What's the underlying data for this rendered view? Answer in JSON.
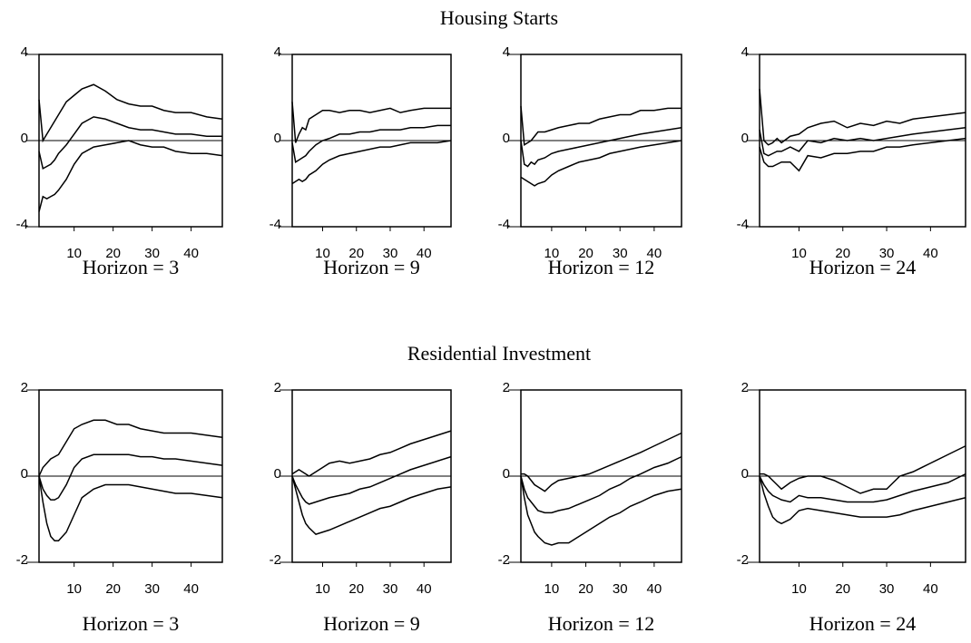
{
  "titles": [
    "Housing Starts",
    "Residential Investment"
  ],
  "chart_data": [
    {
      "type": "line",
      "xlabel": "Horizon = 3",
      "x": [
        1,
        2,
        3,
        4,
        5,
        6,
        8,
        10,
        12,
        15,
        18,
        21,
        24,
        27,
        30,
        33,
        36,
        40,
        44,
        48
      ],
      "xlim": [
        1,
        48
      ],
      "xticks": [
        10,
        20,
        30,
        40
      ],
      "ylim": [
        -4,
        4
      ],
      "yticks": [
        -4,
        0,
        4
      ],
      "series": [
        {
          "color": "#000000",
          "values": [
            1.9,
            0.0,
            0.3,
            0.6,
            0.9,
            1.2,
            1.8,
            2.1,
            2.4,
            2.6,
            2.3,
            1.9,
            1.7,
            1.6,
            1.6,
            1.4,
            1.3,
            1.3,
            1.1,
            1.0
          ]
        },
        {
          "color": "#000000",
          "values": [
            -0.5,
            -1.3,
            -1.2,
            -1.1,
            -0.9,
            -0.6,
            -0.2,
            0.3,
            0.8,
            1.1,
            1.0,
            0.8,
            0.6,
            0.5,
            0.5,
            0.4,
            0.3,
            0.3,
            0.2,
            0.2
          ]
        },
        {
          "color": "#000000",
          "values": [
            -3.3,
            -2.6,
            -2.7,
            -2.6,
            -2.5,
            -2.3,
            -1.8,
            -1.1,
            -0.6,
            -0.3,
            -0.2,
            -0.1,
            0.0,
            -0.2,
            -0.3,
            -0.3,
            -0.5,
            -0.6,
            -0.6,
            -0.7
          ]
        }
      ]
    },
    {
      "type": "line",
      "xlabel": "Horizon = 9",
      "x": [
        1,
        2,
        3,
        4,
        5,
        6,
        8,
        10,
        12,
        15,
        18,
        21,
        24,
        27,
        30,
        33,
        36,
        40,
        44,
        48
      ],
      "xlim": [
        1,
        48
      ],
      "xticks": [
        10,
        20,
        30,
        40
      ],
      "ylim": [
        -4,
        4
      ],
      "yticks": [
        -4,
        0,
        4
      ],
      "series": [
        {
          "color": "#000000",
          "values": [
            1.8,
            -0.1,
            0.3,
            0.6,
            0.5,
            1.0,
            1.2,
            1.4,
            1.4,
            1.3,
            1.4,
            1.4,
            1.3,
            1.4,
            1.5,
            1.3,
            1.4,
            1.5,
            1.5,
            1.5
          ]
        },
        {
          "color": "#000000",
          "values": [
            -0.1,
            -1.0,
            -0.9,
            -0.8,
            -0.7,
            -0.5,
            -0.2,
            0.0,
            0.1,
            0.3,
            0.3,
            0.4,
            0.4,
            0.5,
            0.5,
            0.5,
            0.6,
            0.6,
            0.7,
            0.7
          ]
        },
        {
          "color": "#000000",
          "values": [
            -2.0,
            -1.9,
            -1.8,
            -1.9,
            -1.8,
            -1.6,
            -1.4,
            -1.1,
            -0.9,
            -0.7,
            -0.6,
            -0.5,
            -0.4,
            -0.3,
            -0.3,
            -0.2,
            -0.1,
            -0.1,
            -0.1,
            0.0
          ]
        }
      ]
    },
    {
      "type": "line",
      "xlabel": "Horizon = 12",
      "x": [
        1,
        2,
        3,
        4,
        5,
        6,
        8,
        10,
        12,
        15,
        18,
        21,
        24,
        27,
        30,
        33,
        36,
        40,
        44,
        48
      ],
      "xlim": [
        1,
        48
      ],
      "xticks": [
        10,
        20,
        30,
        40
      ],
      "ylim": [
        -4,
        4
      ],
      "yticks": [
        -4,
        0,
        4
      ],
      "series": [
        {
          "color": "#000000",
          "values": [
            1.6,
            -0.2,
            -0.1,
            0.0,
            0.2,
            0.4,
            0.4,
            0.5,
            0.6,
            0.7,
            0.8,
            0.8,
            1.0,
            1.1,
            1.2,
            1.2,
            1.4,
            1.4,
            1.5,
            1.5
          ]
        },
        {
          "color": "#000000",
          "values": [
            0.0,
            -1.1,
            -1.2,
            -1.0,
            -1.1,
            -0.9,
            -0.8,
            -0.6,
            -0.5,
            -0.4,
            -0.3,
            -0.2,
            -0.1,
            0.0,
            0.1,
            0.2,
            0.3,
            0.4,
            0.5,
            0.6
          ]
        },
        {
          "color": "#000000",
          "values": [
            -1.7,
            -1.8,
            -1.9,
            -2.0,
            -2.1,
            -2.0,
            -1.9,
            -1.6,
            -1.4,
            -1.2,
            -1.0,
            -0.9,
            -0.8,
            -0.6,
            -0.5,
            -0.4,
            -0.3,
            -0.2,
            -0.1,
            0.0
          ]
        }
      ]
    },
    {
      "type": "line",
      "xlabel": "Horizon = 24",
      "x": [
        1,
        2,
        3,
        4,
        5,
        6,
        8,
        10,
        12,
        15,
        18,
        21,
        24,
        27,
        30,
        33,
        36,
        40,
        44,
        48
      ],
      "xlim": [
        1,
        48
      ],
      "xticks": [
        10,
        20,
        30,
        40
      ],
      "ylim": [
        -4,
        4
      ],
      "yticks": [
        -4,
        0,
        4
      ],
      "series": [
        {
          "color": "#000000",
          "values": [
            2.4,
            0.0,
            -0.2,
            -0.1,
            0.1,
            -0.1,
            0.2,
            0.3,
            0.6,
            0.8,
            0.9,
            0.6,
            0.8,
            0.7,
            0.9,
            0.8,
            1.0,
            1.1,
            1.2,
            1.3
          ]
        },
        {
          "color": "#000000",
          "values": [
            0.5,
            -0.6,
            -0.7,
            -0.6,
            -0.5,
            -0.5,
            -0.3,
            -0.5,
            0.0,
            -0.1,
            0.1,
            0.0,
            0.1,
            0.0,
            0.1,
            0.2,
            0.3,
            0.4,
            0.5,
            0.6
          ]
        },
        {
          "color": "#000000",
          "values": [
            -0.3,
            -1.0,
            -1.2,
            -1.2,
            -1.1,
            -1.0,
            -1.0,
            -1.4,
            -0.7,
            -0.8,
            -0.6,
            -0.6,
            -0.5,
            -0.5,
            -0.3,
            -0.3,
            -0.2,
            -0.1,
            0.0,
            0.1
          ]
        }
      ]
    },
    {
      "type": "line",
      "xlabel": "Horizon = 3",
      "x": [
        1,
        2,
        3,
        4,
        5,
        6,
        8,
        10,
        12,
        15,
        18,
        21,
        24,
        27,
        30,
        33,
        36,
        40,
        44,
        48
      ],
      "xlim": [
        1,
        48
      ],
      "xticks": [
        10,
        20,
        30,
        40
      ],
      "ylim": [
        -2,
        2
      ],
      "yticks": [
        -2,
        0,
        2
      ],
      "series": [
        {
          "color": "#000000",
          "values": [
            0.0,
            0.2,
            0.3,
            0.4,
            0.45,
            0.5,
            0.8,
            1.1,
            1.2,
            1.3,
            1.3,
            1.2,
            1.2,
            1.1,
            1.05,
            1.0,
            1.0,
            1.0,
            0.95,
            0.9
          ]
        },
        {
          "color": "#000000",
          "values": [
            0.0,
            -0.3,
            -0.45,
            -0.55,
            -0.55,
            -0.5,
            -0.2,
            0.2,
            0.4,
            0.5,
            0.5,
            0.5,
            0.5,
            0.45,
            0.45,
            0.4,
            0.4,
            0.35,
            0.3,
            0.25
          ]
        },
        {
          "color": "#000000",
          "values": [
            0.0,
            -0.6,
            -1.1,
            -1.4,
            -1.5,
            -1.5,
            -1.3,
            -0.9,
            -0.5,
            -0.3,
            -0.2,
            -0.2,
            -0.2,
            -0.25,
            -0.3,
            -0.35,
            -0.4,
            -0.4,
            -0.45,
            -0.5
          ]
        }
      ]
    },
    {
      "type": "line",
      "xlabel": "Horizon = 9",
      "x": [
        1,
        2,
        3,
        4,
        5,
        6,
        8,
        10,
        12,
        15,
        18,
        21,
        24,
        27,
        30,
        33,
        36,
        40,
        44,
        48
      ],
      "xlim": [
        1,
        48
      ],
      "xticks": [
        10,
        20,
        30,
        40
      ],
      "ylim": [
        -2,
        2
      ],
      "yticks": [
        -2,
        0,
        2
      ],
      "series": [
        {
          "color": "#000000",
          "values": [
            0.05,
            0.1,
            0.15,
            0.1,
            0.05,
            0.0,
            0.1,
            0.2,
            0.3,
            0.35,
            0.3,
            0.35,
            0.4,
            0.5,
            0.55,
            0.65,
            0.75,
            0.85,
            0.95,
            1.05
          ]
        },
        {
          "color": "#000000",
          "values": [
            0.0,
            -0.2,
            -0.35,
            -0.5,
            -0.6,
            -0.65,
            -0.6,
            -0.55,
            -0.5,
            -0.45,
            -0.4,
            -0.3,
            -0.25,
            -0.15,
            -0.05,
            0.05,
            0.15,
            0.25,
            0.35,
            0.45
          ]
        },
        {
          "color": "#000000",
          "values": [
            0.0,
            -0.3,
            -0.6,
            -0.9,
            -1.1,
            -1.2,
            -1.35,
            -1.3,
            -1.25,
            -1.15,
            -1.05,
            -0.95,
            -0.85,
            -0.75,
            -0.7,
            -0.6,
            -0.5,
            -0.4,
            -0.3,
            -0.25
          ]
        }
      ]
    },
    {
      "type": "line",
      "xlabel": "Horizon = 12",
      "x": [
        1,
        2,
        3,
        4,
        5,
        6,
        8,
        10,
        12,
        15,
        18,
        21,
        24,
        27,
        30,
        33,
        36,
        40,
        44,
        48
      ],
      "xlim": [
        1,
        48
      ],
      "xticks": [
        10,
        20,
        30,
        40
      ],
      "ylim": [
        -2,
        2
      ],
      "yticks": [
        -2,
        0,
        2
      ],
      "series": [
        {
          "color": "#000000",
          "values": [
            0.05,
            0.05,
            0.0,
            -0.1,
            -0.2,
            -0.25,
            -0.35,
            -0.2,
            -0.1,
            -0.05,
            0.0,
            0.05,
            0.15,
            0.25,
            0.35,
            0.45,
            0.55,
            0.7,
            0.85,
            1.0
          ]
        },
        {
          "color": "#000000",
          "values": [
            0.0,
            -0.3,
            -0.5,
            -0.6,
            -0.7,
            -0.8,
            -0.85,
            -0.85,
            -0.8,
            -0.75,
            -0.65,
            -0.55,
            -0.45,
            -0.3,
            -0.2,
            -0.05,
            0.05,
            0.2,
            0.3,
            0.45
          ]
        },
        {
          "color": "#000000",
          "values": [
            0.0,
            -0.5,
            -0.9,
            -1.1,
            -1.3,
            -1.4,
            -1.55,
            -1.6,
            -1.55,
            -1.55,
            -1.4,
            -1.25,
            -1.1,
            -0.95,
            -0.85,
            -0.7,
            -0.6,
            -0.45,
            -0.35,
            -0.3
          ]
        }
      ]
    },
    {
      "type": "line",
      "xlabel": "Horizon = 24",
      "x": [
        1,
        2,
        3,
        4,
        5,
        6,
        8,
        10,
        12,
        15,
        18,
        21,
        24,
        27,
        30,
        33,
        36,
        40,
        44,
        48
      ],
      "xlim": [
        1,
        48
      ],
      "xticks": [
        10,
        20,
        30,
        40
      ],
      "ylim": [
        -2,
        2
      ],
      "yticks": [
        -2,
        0,
        2
      ],
      "series": [
        {
          "color": "#000000",
          "values": [
            0.05,
            0.05,
            0.0,
            -0.1,
            -0.2,
            -0.3,
            -0.15,
            -0.05,
            0.0,
            0.0,
            -0.1,
            -0.25,
            -0.4,
            -0.3,
            -0.3,
            0.0,
            0.1,
            0.3,
            0.5,
            0.7
          ]
        },
        {
          "color": "#000000",
          "values": [
            0.0,
            -0.2,
            -0.35,
            -0.45,
            -0.5,
            -0.55,
            -0.6,
            -0.45,
            -0.5,
            -0.5,
            -0.55,
            -0.6,
            -0.6,
            -0.6,
            -0.55,
            -0.45,
            -0.35,
            -0.25,
            -0.15,
            0.05
          ]
        },
        {
          "color": "#000000",
          "values": [
            0.0,
            -0.4,
            -0.7,
            -0.95,
            -1.05,
            -1.1,
            -1.0,
            -0.8,
            -0.75,
            -0.8,
            -0.85,
            -0.9,
            -0.95,
            -0.95,
            -0.95,
            -0.9,
            -0.8,
            -0.7,
            -0.6,
            -0.5
          ]
        }
      ]
    }
  ]
}
